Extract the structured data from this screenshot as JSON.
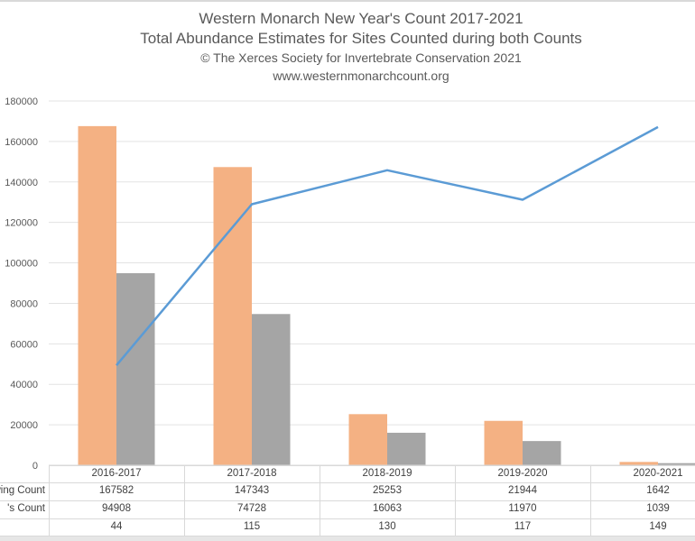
{
  "chart": {
    "title": "Western Monarch New Year's Count 2017-2021",
    "subtitle": "Total Abundance Estimates for Sites Counted during both Counts",
    "copyright": "© The Xerces Society for Invertebrate Conservation 2021",
    "url": "www.westernmonarchcount.org"
  },
  "yaxis": {
    "ticks": [
      "0",
      "20000",
      "40000",
      "60000",
      "80000",
      "100000",
      "120000",
      "140000",
      "160000",
      "180000"
    ]
  },
  "table": {
    "row_labels": [
      "wing Count",
      "'s Count",
      ""
    ],
    "categories": [
      "2016-2017",
      "2017-2018",
      "2018-2019",
      "2019-2020",
      "2020-2021"
    ],
    "rows": [
      [
        "167582",
        "147343",
        "25253",
        "21944",
        "1642"
      ],
      [
        "94908",
        "74728",
        "16063",
        "11970",
        "1039"
      ],
      [
        "44",
        "115",
        "130",
        "117",
        "149"
      ]
    ]
  },
  "colors": {
    "series1": "#f4b183",
    "series2": "#a5a5a5",
    "line": "#5b9bd5",
    "grid": "#e3e3e3",
    "text": "#595959"
  },
  "chart_data": {
    "type": "bar",
    "title": "Western Monarch New Year's Count 2017-2021",
    "subtitle": "Total Abundance Estimates for Sites Counted during both Counts",
    "categories": [
      "2016-2017",
      "2017-2018",
      "2018-2019",
      "2019-2020",
      "2020-2021"
    ],
    "series": [
      {
        "name": "Thanksgiving Count (label truncated: 'wing Count')",
        "type": "bar",
        "values": [
          167582,
          147343,
          25253,
          21944,
          1642
        ]
      },
      {
        "name": "New Year's Count (label truncated: ''s Count')",
        "type": "bar",
        "values": [
          94908,
          74728,
          16063,
          11970,
          1039
        ]
      },
      {
        "name": "(unlabeled third row)",
        "type": "line",
        "axis": "secondary (hidden)",
        "values": [
          44,
          115,
          130,
          117,
          149
        ]
      }
    ],
    "xlabel": "",
    "ylabel": "",
    "ylim": [
      0,
      180000
    ],
    "yticks": [
      0,
      20000,
      40000,
      60000,
      80000,
      100000,
      120000,
      140000,
      160000,
      180000
    ],
    "grid": true,
    "legend": "data table below chart"
  }
}
